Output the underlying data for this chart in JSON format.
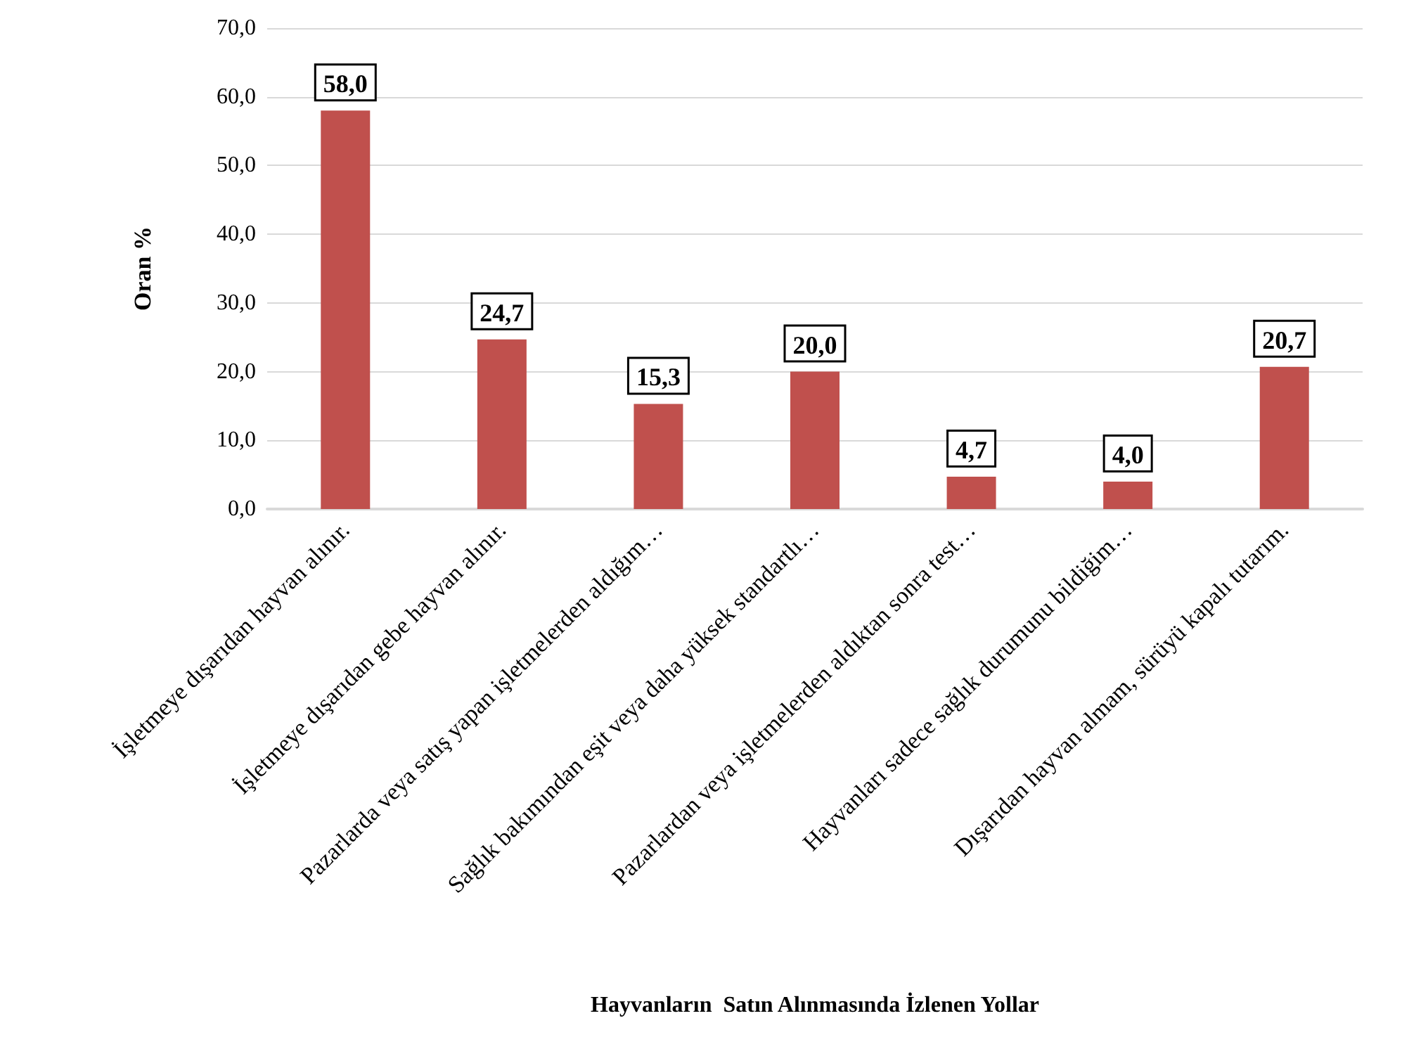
{
  "chart_data": {
    "type": "bar",
    "xlabel": "Hayvanların  Satın Alınmasında İzlenen Yollar",
    "ylabel": "Oran %",
    "categories": [
      "İşletmeye dışarıdan hayvan alınır.",
      "İşletmeye dışarıdan gebe hayvan alınır.",
      "Pazarlarda veya satış yapan işletmelerden aldığım…",
      "Sağlık bakımından eşit veya daha yüksek standartlı…",
      "Pazarlardan veya işletmelerden aldıktan sonra test…",
      "Hayvanları sadece sağlık durumunu bildiğim…",
      "Dışarıdan hayvan almam, sürüyü kapalı tutarım."
    ],
    "values": [
      58.0,
      24.7,
      15.3,
      20.0,
      4.7,
      4.0,
      20.7
    ],
    "value_labels": [
      "58,0",
      "24,7",
      "15,3",
      "20,0",
      "4,7",
      "4,0",
      "20,7"
    ],
    "color": "#c0504d",
    "ylim": [
      0,
      70
    ],
    "yticks": [
      {
        "value": 0,
        "label": "0,0"
      },
      {
        "value": 10,
        "label": "10,0"
      },
      {
        "value": 20,
        "label": "20,0"
      },
      {
        "value": 30,
        "label": "30,0"
      },
      {
        "value": 40,
        "label": "40,0"
      },
      {
        "value": 50,
        "label": "50,0"
      },
      {
        "value": 60,
        "label": "60,0"
      },
      {
        "value": 70,
        "label": "70,0"
      }
    ],
    "grid": "y"
  }
}
